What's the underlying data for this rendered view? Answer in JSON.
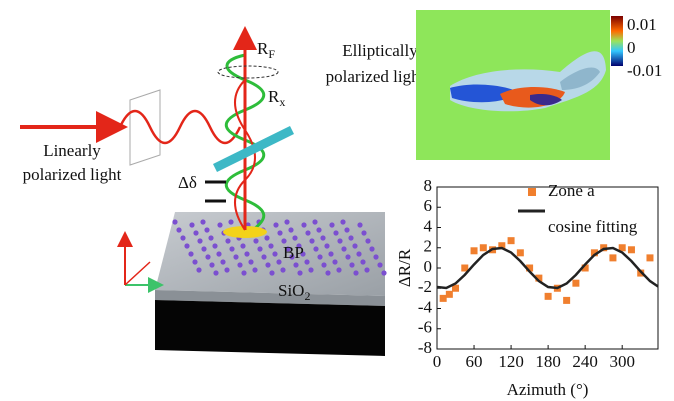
{
  "diagram": {
    "output_label": {
      "main": "R",
      "sub": "F"
    },
    "rotation_label": {
      "main": "R",
      "sub": "x"
    },
    "elliptical_label": [
      "Elliptically",
      "polarized light"
    ],
    "linear_label": [
      "Linearly",
      "polarized light"
    ],
    "phase_label": "Δδ",
    "material_label": "BP",
    "substrate_label": {
      "main": "SiO",
      "sub": "2"
    }
  },
  "colormap": {
    "ticks": [
      0.01,
      0,
      -0.01
    ]
  },
  "chart_data": {
    "type": "scatter",
    "x_label": "Azimuth (°)",
    "y_label": "ΔR/R",
    "xlim": [
      0,
      358
    ],
    "ylim": [
      -8,
      8
    ],
    "xticks": [
      0,
      60,
      120,
      180,
      240,
      300
    ],
    "yticks": [
      8,
      6,
      4,
      2,
      0,
      -2,
      -4,
      -6,
      -8
    ],
    "series": [
      {
        "name": "Zone a",
        "type": "scatter",
        "color": "#f07f2e",
        "x": [
          10,
          20,
          30,
          45,
          60,
          75,
          90,
          105,
          120,
          135,
          150,
          165,
          180,
          195,
          210,
          225,
          240,
          255,
          270,
          285,
          300,
          315,
          330,
          345
        ],
        "values": [
          -3,
          -2.6,
          -2,
          0,
          1.7,
          2,
          1.8,
          2.2,
          2.7,
          1.5,
          0,
          -1,
          -2.8,
          -2,
          -3.2,
          -1.5,
          0,
          1.5,
          2,
          1,
          2,
          1.8,
          -0.5,
          1
        ]
      },
      {
        "name": "cosine fitting",
        "type": "line",
        "color": "#222222",
        "x": [
          0,
          15,
          30,
          45,
          60,
          75,
          90,
          105,
          120,
          135,
          150,
          165,
          180,
          195,
          210,
          225,
          240,
          255,
          270,
          285,
          300,
          315,
          330,
          345,
          358
        ],
        "values": [
          -1.88,
          -1.97,
          -1.53,
          -0.68,
          0.35,
          1.29,
          1.88,
          1.97,
          1.53,
          0.68,
          -0.35,
          -1.29,
          -1.88,
          -1.97,
          -1.53,
          -0.68,
          0.35,
          1.29,
          1.88,
          1.97,
          1.53,
          0.68,
          -0.35,
          -1.29,
          -1.83
        ]
      }
    ]
  }
}
